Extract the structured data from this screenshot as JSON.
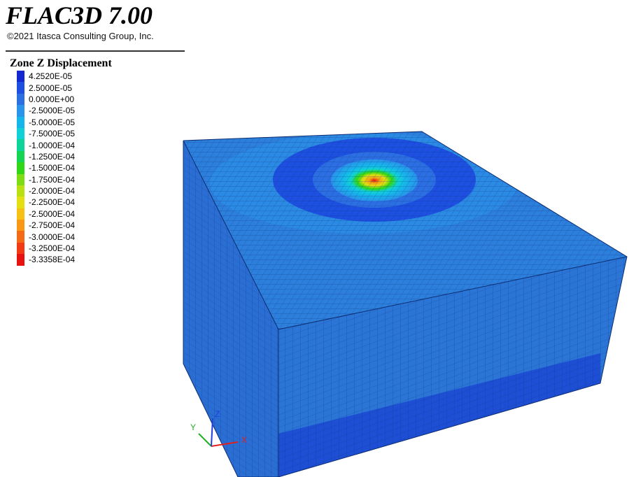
{
  "header": {
    "app_title": "FLAC3D 7.00",
    "copyright": "©2021 Itasca Consulting Group, Inc."
  },
  "legend": {
    "title": "Zone Z Displacement",
    "items": [
      {
        "label": "4.2520E-05",
        "color": "#1428d2"
      },
      {
        "label": "2.5000E-05",
        "color": "#1d4fe0"
      },
      {
        "label": "0.0000E+00",
        "color": "#2b6fe3"
      },
      {
        "label": "-2.5000E-05",
        "color": "#2a93ea"
      },
      {
        "label": "-5.0000E-05",
        "color": "#15b7ea"
      },
      {
        "label": "-7.5000E-05",
        "color": "#10d2d6"
      },
      {
        "label": "-1.0000E-04",
        "color": "#0fd49a"
      },
      {
        "label": "-1.2500E-04",
        "color": "#13d453"
      },
      {
        "label": "-1.5000E-04",
        "color": "#2ed815"
      },
      {
        "label": "-1.7500E-04",
        "color": "#7edc14"
      },
      {
        "label": "-2.0000E-04",
        "color": "#b9e012"
      },
      {
        "label": "-2.2500E-04",
        "color": "#e3df12"
      },
      {
        "label": "-2.5000E-04",
        "color": "#f6c014"
      },
      {
        "label": "-2.7500E-04",
        "color": "#f89814"
      },
      {
        "label": "-3.0000E-04",
        "color": "#f56a14"
      },
      {
        "label": "-3.2500E-04",
        "color": "#f23a14"
      },
      {
        "label": "-3.3358E-04",
        "color": "#e8120f"
      }
    ]
  },
  "model": {
    "top_color": "#2d7fdc",
    "front_color": "#2a75d6",
    "front_lower_color": "#1d4ed3",
    "side_color": "#2a6ed4",
    "grid_color": "#123a8a"
  },
  "axes": {
    "x": {
      "label": "X",
      "color": "#e02020"
    },
    "y": {
      "label": "Y",
      "color": "#20b020"
    },
    "z": {
      "label": "Z",
      "color": "#2040e0"
    }
  }
}
